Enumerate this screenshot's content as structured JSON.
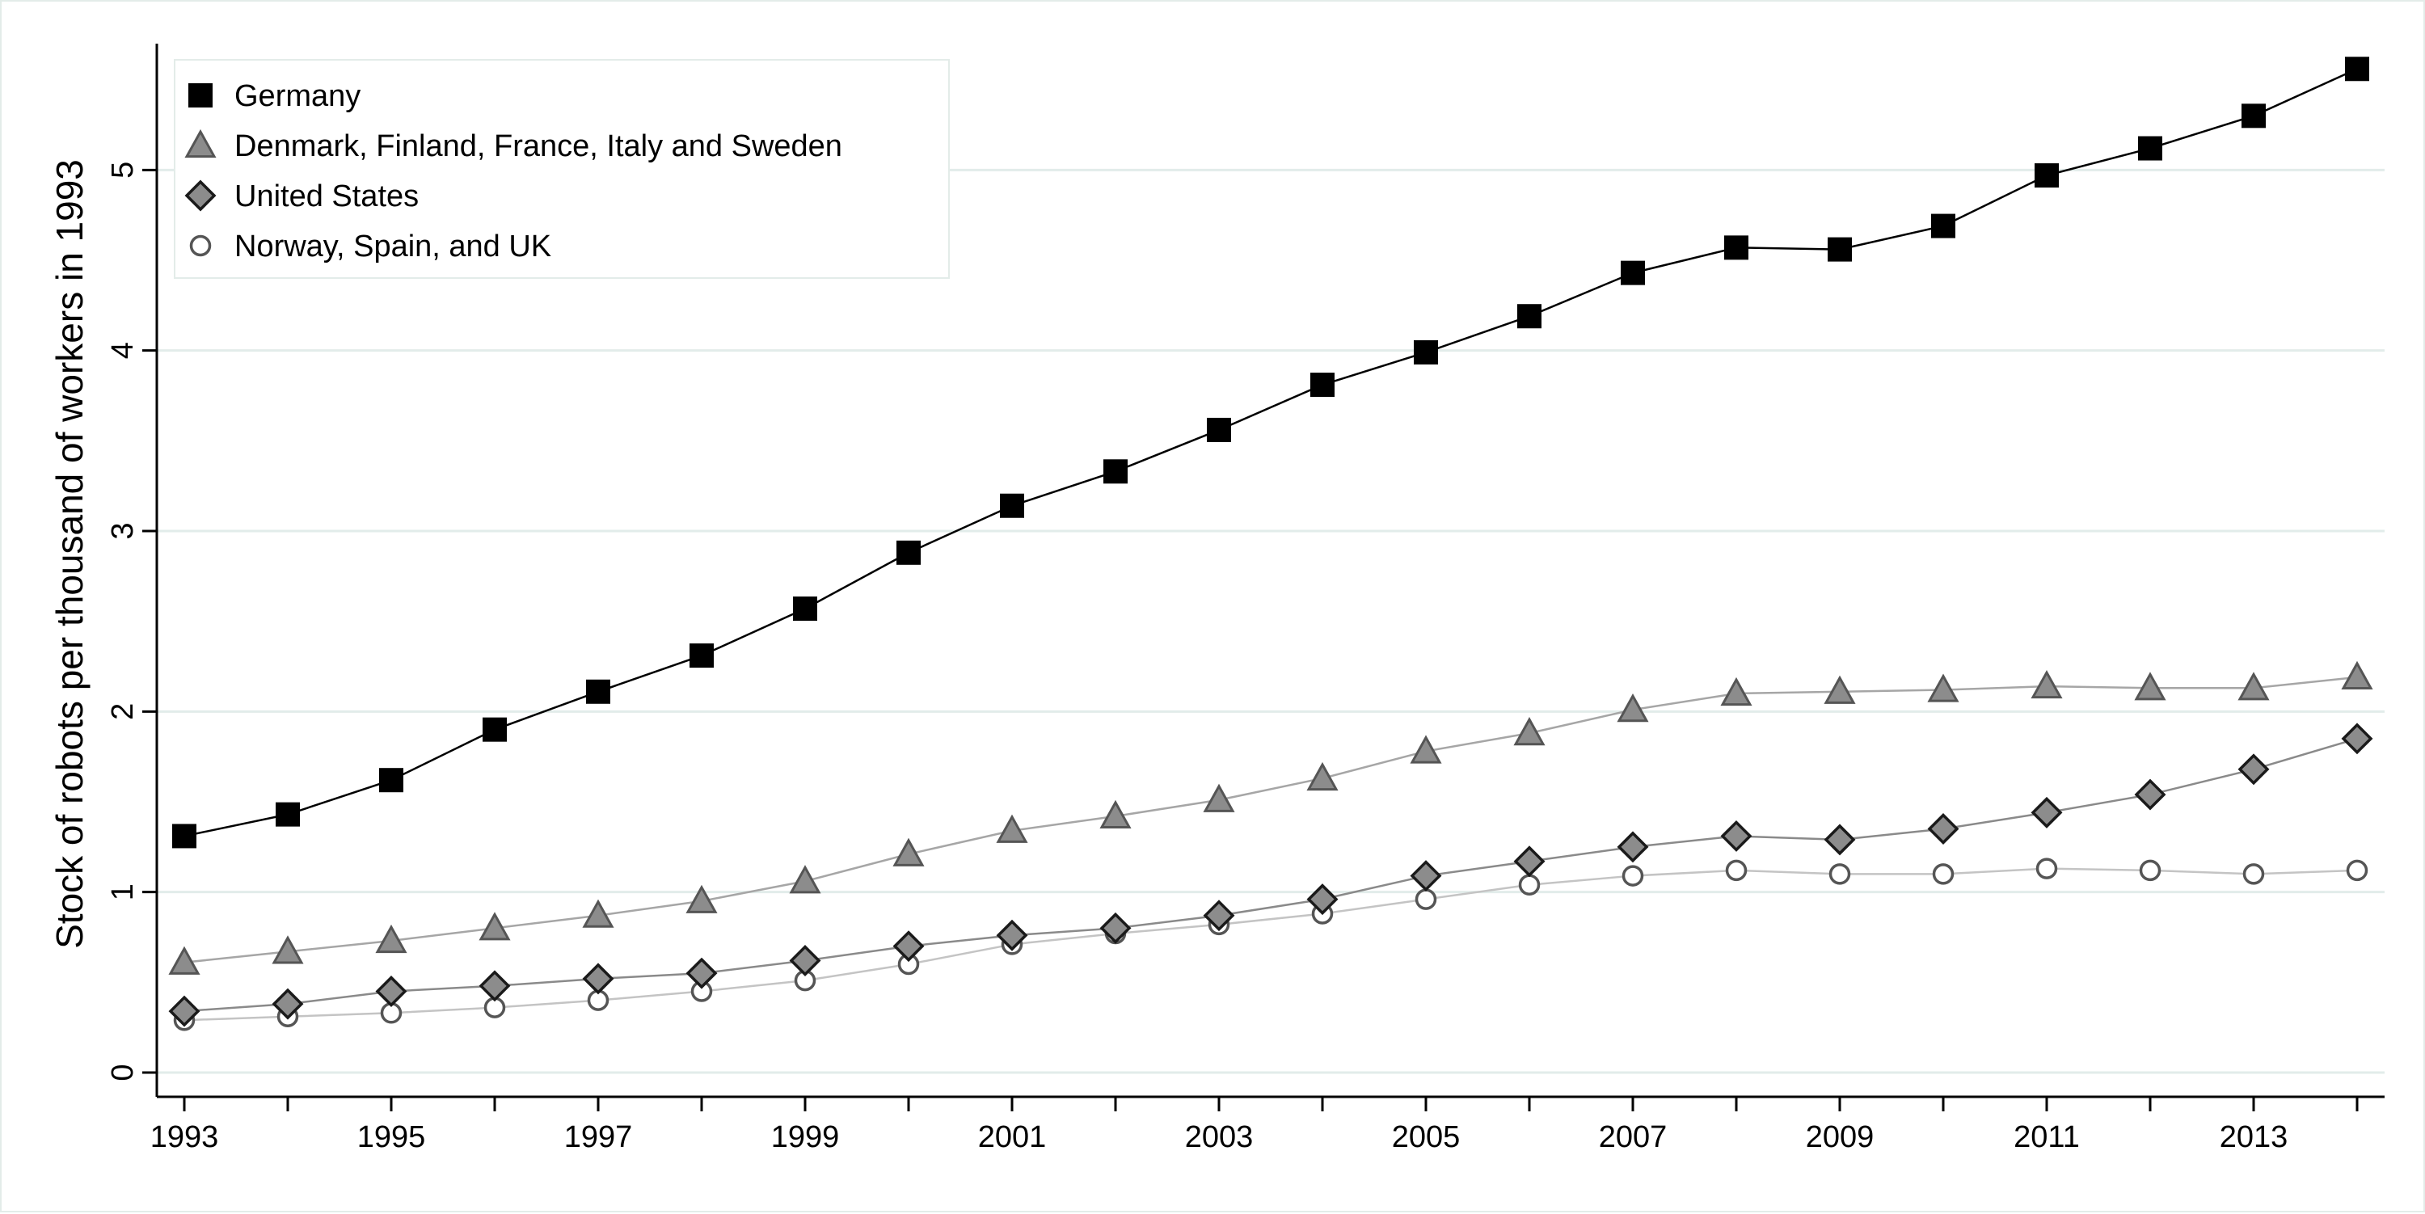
{
  "chart_data": {
    "type": "line",
    "title": "",
    "xlabel": "",
    "ylabel": "Stock of robots per thousand of workers in 1993",
    "x": [
      1993,
      1994,
      1995,
      1996,
      1997,
      1998,
      1999,
      2000,
      2001,
      2002,
      2003,
      2004,
      2005,
      2006,
      2007,
      2008,
      2009,
      2010,
      2011,
      2012,
      2013,
      2014
    ],
    "xticks": [
      "1993",
      "1995",
      "1997",
      "1999",
      "2001",
      "2003",
      "2005",
      "2007",
      "2009",
      "2011",
      "2013"
    ],
    "yticks": [
      "0",
      "1",
      "2",
      "3",
      "4",
      "5"
    ],
    "xlim": [
      1993,
      2014
    ],
    "ylim": [
      0,
      5.7
    ],
    "grid": true,
    "legend_position": "top-left",
    "series": [
      {
        "name": "Germany",
        "marker": "square",
        "line_color": "#000000",
        "marker_fill": "#000000",
        "marker_stroke": "#000000",
        "values": [
          1.31,
          1.43,
          1.62,
          1.9,
          2.11,
          2.31,
          2.57,
          2.88,
          3.14,
          3.33,
          3.56,
          3.81,
          3.99,
          4.19,
          4.43,
          4.57,
          4.56,
          4.69,
          4.97,
          5.12,
          5.3,
          5.56
        ]
      },
      {
        "name": "Denmark, Finland, France, Italy and Sweden",
        "marker": "triangle",
        "line_color": "#a6a6a6",
        "marker_fill": "#8c8c8c",
        "marker_stroke": "#555555",
        "values": [
          0.61,
          0.67,
          0.73,
          0.8,
          0.87,
          0.95,
          1.06,
          1.21,
          1.34,
          1.42,
          1.51,
          1.63,
          1.78,
          1.88,
          2.01,
          2.1,
          2.11,
          2.12,
          2.14,
          2.13,
          2.13,
          2.19
        ]
      },
      {
        "name": "United States",
        "marker": "diamond",
        "line_color": "#8a8a8a",
        "marker_fill": "#8c8c8c",
        "marker_stroke": "#1a1a1a",
        "values": [
          0.34,
          0.38,
          0.45,
          0.48,
          0.52,
          0.55,
          0.62,
          0.7,
          0.76,
          0.8,
          0.87,
          0.96,
          1.09,
          1.17,
          1.25,
          1.31,
          1.29,
          1.35,
          1.44,
          1.54,
          1.68,
          1.85
        ]
      },
      {
        "name": "Norway, Spain, and UK",
        "marker": "circle",
        "line_color": "#c4c4c4",
        "marker_fill": "#ffffff",
        "marker_stroke": "#555555",
        "values": [
          0.29,
          0.31,
          0.33,
          0.36,
          0.4,
          0.45,
          0.51,
          0.6,
          0.71,
          0.77,
          0.82,
          0.88,
          0.96,
          1.04,
          1.09,
          1.12,
          1.1,
          1.1,
          1.13,
          1.12,
          1.1,
          1.12
        ]
      }
    ]
  }
}
